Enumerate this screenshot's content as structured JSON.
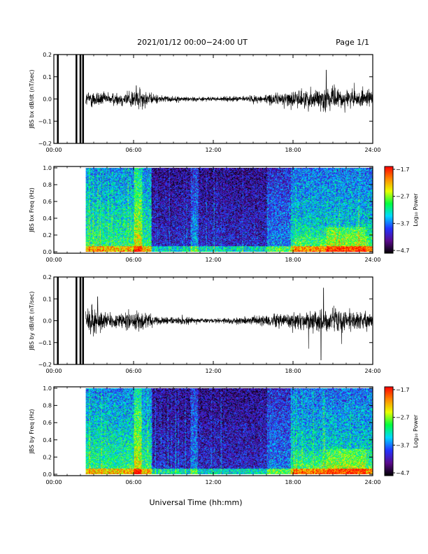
{
  "header": {
    "title": "2021/01/12  00:00−24:00 UT",
    "page": "Page 1/1"
  },
  "chart_data": [
    {
      "type": "line",
      "ylabel": "JBS bx dB/dt (nT/sec)",
      "xlim": [
        0,
        24
      ],
      "ylim": [
        -0.2,
        0.2
      ],
      "x_ticks": [
        "00:00",
        "06:00",
        "12:00",
        "18:00",
        "24:00"
      ],
      "y_ticks": [
        "0.2",
        "0.1",
        "0.0",
        "−0.1",
        "−0.2"
      ],
      "series": [
        {
          "data_start_hour": 2.4,
          "envelope": [
            {
              "t": 2.4,
              "amp": 0.03
            },
            {
              "t": 3.0,
              "amp": 0.04
            },
            {
              "t": 4.0,
              "amp": 0.025
            },
            {
              "t": 5.0,
              "amp": 0.03
            },
            {
              "t": 6.3,
              "amp": 0.05
            },
            {
              "t": 7.5,
              "amp": 0.02
            },
            {
              "t": 9.0,
              "amp": 0.012
            },
            {
              "t": 12.0,
              "amp": 0.008
            },
            {
              "t": 14.0,
              "amp": 0.012
            },
            {
              "t": 16.0,
              "amp": 0.02
            },
            {
              "t": 18.0,
              "amp": 0.035
            },
            {
              "t": 20.3,
              "amp": 0.05
            },
            {
              "t": 22.0,
              "amp": 0.04
            },
            {
              "t": 24.0,
              "amp": 0.035
            }
          ],
          "gap_spikes": [
            0.3,
            0.6,
            1.7,
            2.0,
            2.2
          ],
          "peaks": [
            {
              "t": 20.5,
              "v": 0.13
            },
            {
              "t": 6.2,
              "v": 0.06
            }
          ]
        }
      ]
    },
    {
      "type": "heatmap",
      "ylabel": "JBS bx Freq (Hz)",
      "xlim": [
        0,
        24
      ],
      "ylim": [
        0,
        1.0
      ],
      "x_ticks": [
        "00:00",
        "06:00",
        "12:00",
        "18:00",
        "24:00"
      ],
      "y_ticks": [
        "1.0",
        "0.8",
        "0.6",
        "0.4",
        "0.2",
        "0.0"
      ],
      "data_start_hour": 2.4,
      "colorbar": {
        "label": "Log₁₀ Power",
        "ticks": [
          "−1.7",
          "−2.7",
          "−3.7",
          "−4.7"
        ],
        "range": [
          -4.7,
          -1.7
        ],
        "colors": [
          "#000000",
          "#5a0a8c",
          "#2233ff",
          "#00d8ff",
          "#00ff40",
          "#e8ff00",
          "#ff8800",
          "#ff0000"
        ]
      }
    },
    {
      "type": "line",
      "ylabel": "JBS by dB/dt (nT/sec)",
      "xlim": [
        0,
        24
      ],
      "ylim": [
        -0.2,
        0.2
      ],
      "x_ticks": [
        "00:00",
        "06:00",
        "12:00",
        "18:00",
        "24:00"
      ],
      "y_ticks": [
        "0.2",
        "0.1",
        "0.0",
        "−0.1",
        "−0.2"
      ],
      "series": [
        {
          "data_start_hour": 2.4,
          "envelope": [
            {
              "t": 2.4,
              "amp": 0.04
            },
            {
              "t": 3.0,
              "amp": 0.06
            },
            {
              "t": 4.0,
              "amp": 0.035
            },
            {
              "t": 5.0,
              "amp": 0.03
            },
            {
              "t": 6.3,
              "amp": 0.05
            },
            {
              "t": 7.5,
              "amp": 0.02
            },
            {
              "t": 9.0,
              "amp": 0.015
            },
            {
              "t": 12.0,
              "amp": 0.01
            },
            {
              "t": 14.0,
              "amp": 0.015
            },
            {
              "t": 16.0,
              "amp": 0.025
            },
            {
              "t": 18.0,
              "amp": 0.04
            },
            {
              "t": 20.3,
              "amp": 0.06
            },
            {
              "t": 22.0,
              "amp": 0.045
            },
            {
              "t": 24.0,
              "amp": 0.04
            }
          ],
          "gap_spikes": [
            0.3,
            0.6,
            1.7,
            2.0,
            2.2
          ],
          "peaks": [
            {
              "t": 20.3,
              "v": 0.15
            },
            {
              "t": 3.3,
              "v": 0.11
            },
            {
              "t": 20.1,
              "v": -0.18
            }
          ]
        }
      ]
    },
    {
      "type": "heatmap",
      "ylabel": "JBS by Freq (Hz)",
      "xlim": [
        0,
        24
      ],
      "ylim": [
        0,
        1.0
      ],
      "x_ticks": [
        "00:00",
        "06:00",
        "12:00",
        "18:00",
        "24:00"
      ],
      "y_ticks": [
        "1.0",
        "0.8",
        "0.6",
        "0.4",
        "0.2",
        "0.0"
      ],
      "data_start_hour": 2.4,
      "colorbar": {
        "label": "Log₁₀ Power",
        "ticks": [
          "−1.7",
          "−2.7",
          "−3.7",
          "−4.7"
        ],
        "range": [
          -4.7,
          -1.7
        ],
        "colors": [
          "#000000",
          "#5a0a8c",
          "#2233ff",
          "#00d8ff",
          "#00ff40",
          "#e8ff00",
          "#ff8800",
          "#ff0000"
        ]
      }
    }
  ],
  "footer": {
    "xlabel": "Universal Time (hh:mm)"
  }
}
